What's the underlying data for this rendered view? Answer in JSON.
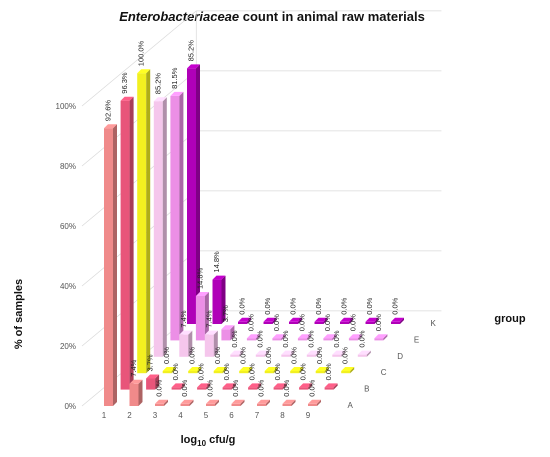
{
  "chart_data": {
    "type": "bar",
    "title": {
      "italic": "Enterobacteriaceae",
      "rest": " count in animal raw materials"
    },
    "xlabel": {
      "base": "log",
      "sub": "10",
      "rest": " cfu/g"
    },
    "ylabel": "% of samples",
    "zlabel": "group",
    "categories": [
      "1",
      "2",
      "3",
      "4",
      "5",
      "6",
      "7",
      "8",
      "9"
    ],
    "y_ticks": [
      "0%",
      "20%",
      "40%",
      "60%",
      "80%",
      "100%"
    ],
    "ylim": [
      0,
      100
    ],
    "series": [
      {
        "name": "A",
        "color": "#f08a8a",
        "values": [
          92.6,
          7.4,
          0,
          0,
          0,
          0,
          0,
          0,
          0
        ],
        "labels": [
          "92.6%",
          "7.4%",
          "0.0%",
          "0.0%",
          "0.0%",
          "0.0%",
          "0.0%",
          "0.0%",
          "0.0%"
        ]
      },
      {
        "name": "B",
        "color": "#e8557a",
        "values": [
          96.3,
          3.7,
          0,
          0,
          0,
          0,
          0,
          0,
          0
        ],
        "labels": [
          "96.3%",
          "3.7%",
          "0.0%",
          "0.0%",
          "0.0%",
          "0.0%",
          "0.0%",
          "0.0%",
          "0.0%"
        ]
      },
      {
        "name": "C",
        "color": "#f2f020",
        "values": [
          100.0,
          0,
          0,
          0,
          0,
          0,
          0,
          0,
          0
        ],
        "labels": [
          "100.0%",
          "0.0%",
          "0.0%",
          "0.0%",
          "0.0%",
          "0.0%",
          "0.0%",
          "0.0%",
          "0.0%"
        ]
      },
      {
        "name": "D",
        "color": "#f5c6ec",
        "values": [
          85.2,
          7.4,
          7.4,
          0,
          0,
          0,
          0,
          0,
          0
        ],
        "labels": [
          "85.2%",
          "7.4%",
          "7.4%",
          "0.0%",
          "0.0%",
          "0.0%",
          "0.0%",
          "0.0%",
          "0.0%"
        ]
      },
      {
        "name": "E",
        "color": "#ec8fe6",
        "values": [
          81.5,
          14.8,
          3.7,
          0,
          0,
          0,
          0,
          0,
          0
        ],
        "labels": [
          "81.5%",
          "14.8%",
          "3.7%",
          "0.0%",
          "0.0%",
          "0.0%",
          "0.0%",
          "0.0%",
          "0.0%"
        ]
      },
      {
        "name": "K",
        "color": "#b000b8",
        "values": [
          85.2,
          14.8,
          0,
          0,
          0,
          0,
          0,
          0,
          0
        ],
        "labels": [
          "85.2%",
          "14.8%",
          "0.0%",
          "0.0%",
          "0.0%",
          "0.0%",
          "0.0%",
          "0.0%",
          "0.0%"
        ]
      }
    ]
  }
}
